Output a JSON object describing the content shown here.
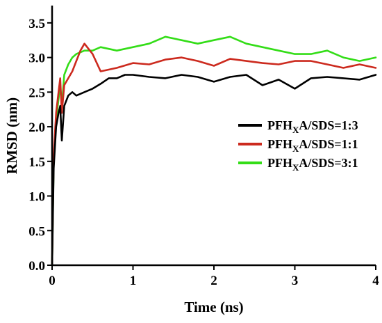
{
  "chart_data": {
    "type": "line",
    "title": "",
    "xlabel": "Time (ns)",
    "ylabel": "RMSD (nm)",
    "xlim": [
      0,
      4
    ],
    "ylim": [
      0,
      3.75
    ],
    "xticks": [
      0,
      1,
      2,
      3,
      4
    ],
    "xtick_labels": [
      "0",
      "1",
      "2",
      "3",
      "4"
    ],
    "yticks": [
      0.0,
      0.5,
      1.0,
      1.5,
      2.0,
      2.5,
      3.0,
      3.5
    ],
    "ytick_labels": [
      "0.0",
      "0.5",
      "1.0",
      "1.5",
      "2.0",
      "2.5",
      "3.0",
      "3.5"
    ],
    "grid": false,
    "legend_position": "right",
    "series": [
      {
        "legend_main": "PFH",
        "legend_sub": "X",
        "legend_tail": "A/SDS=1:3",
        "color": "#000000",
        "x": [
          0,
          0.02,
          0.05,
          0.08,
          0.1,
          0.12,
          0.15,
          0.2,
          0.25,
          0.3,
          0.4,
          0.5,
          0.6,
          0.7,
          0.8,
          0.9,
          1.0,
          1.2,
          1.4,
          1.6,
          1.8,
          2.0,
          2.2,
          2.4,
          2.6,
          2.8,
          3.0,
          3.2,
          3.4,
          3.6,
          3.8,
          4.0
        ],
        "y": [
          0.0,
          1.4,
          2.0,
          2.2,
          2.3,
          1.8,
          2.3,
          2.45,
          2.5,
          2.45,
          2.5,
          2.55,
          2.62,
          2.7,
          2.7,
          2.75,
          2.75,
          2.72,
          2.7,
          2.75,
          2.72,
          2.65,
          2.72,
          2.75,
          2.6,
          2.68,
          2.55,
          2.7,
          2.72,
          2.7,
          2.68,
          2.75
        ]
      },
      {
        "legend_main": "PFH",
        "legend_sub": "X",
        "legend_tail": "A/SDS=1:1",
        "color": "#cc2a1e",
        "x": [
          0,
          0.02,
          0.05,
          0.08,
          0.1,
          0.12,
          0.15,
          0.2,
          0.25,
          0.3,
          0.35,
          0.4,
          0.5,
          0.6,
          0.8,
          1.0,
          1.2,
          1.4,
          1.6,
          1.8,
          2.0,
          2.2,
          2.4,
          2.6,
          2.8,
          3.0,
          3.2,
          3.4,
          3.6,
          3.8,
          4.0
        ],
        "y": [
          0.0,
          1.6,
          2.2,
          2.5,
          2.7,
          2.2,
          2.6,
          2.7,
          2.8,
          2.95,
          3.1,
          3.2,
          3.05,
          2.8,
          2.85,
          2.92,
          2.9,
          2.97,
          3.0,
          2.95,
          2.88,
          2.98,
          2.95,
          2.92,
          2.9,
          2.95,
          2.95,
          2.9,
          2.85,
          2.9,
          2.85
        ]
      },
      {
        "legend_main": "PFH",
        "legend_sub": "X",
        "legend_tail": "A/SDS=3:1",
        "color": "#33dd17",
        "x": [
          0,
          0.02,
          0.05,
          0.08,
          0.1,
          0.12,
          0.15,
          0.2,
          0.25,
          0.3,
          0.4,
          0.5,
          0.6,
          0.8,
          1.0,
          1.2,
          1.4,
          1.6,
          1.8,
          2.0,
          2.2,
          2.4,
          2.6,
          2.8,
          3.0,
          3.2,
          3.4,
          3.6,
          3.8,
          4.0
        ],
        "y": [
          0.0,
          1.5,
          2.1,
          2.4,
          2.6,
          2.3,
          2.75,
          2.9,
          3.0,
          3.05,
          3.1,
          3.1,
          3.15,
          3.1,
          3.15,
          3.2,
          3.3,
          3.25,
          3.2,
          3.25,
          3.3,
          3.2,
          3.15,
          3.1,
          3.05,
          3.05,
          3.1,
          3.0,
          2.95,
          3.0
        ]
      }
    ]
  }
}
